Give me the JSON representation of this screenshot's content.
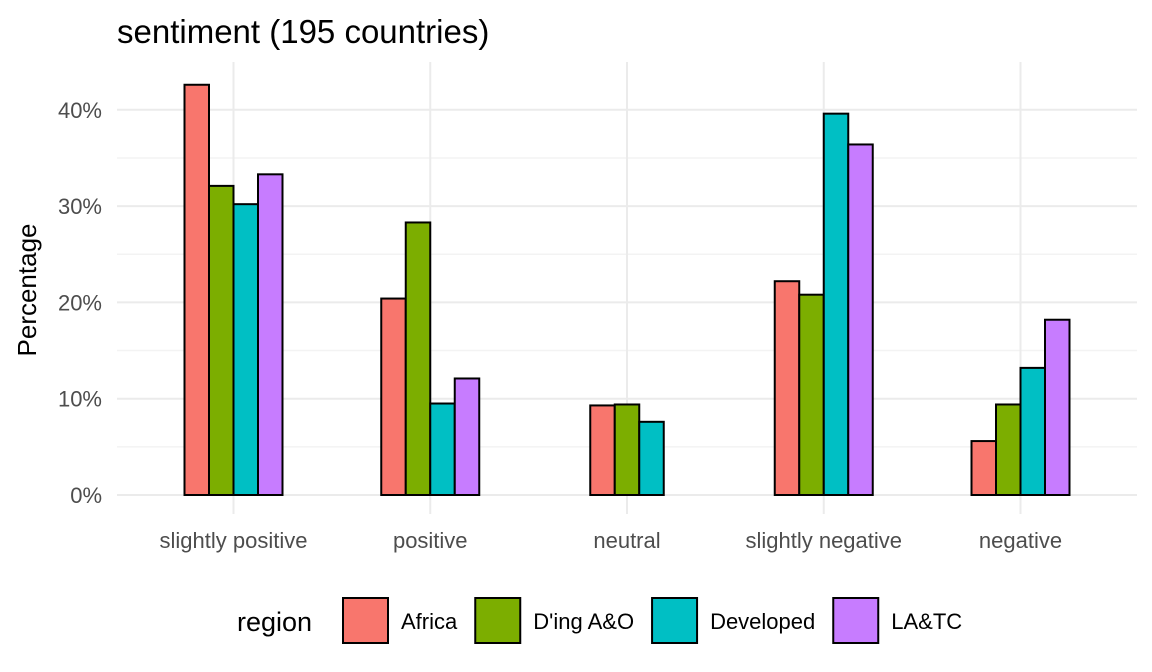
{
  "chart_data": {
    "type": "bar",
    "title": "sentiment (195 countries)",
    "xlabel": "",
    "ylabel": "Percentage",
    "categories": [
      "slightly positive",
      "positive",
      "neutral",
      "slightly negative",
      "negative"
    ],
    "series": [
      {
        "name": "Africa",
        "color": "#F8766D",
        "values": [
          42.6,
          20.4,
          9.3,
          22.2,
          5.6
        ]
      },
      {
        "name": "D'ing A&O",
        "color": "#7CAE00",
        "values": [
          32.1,
          28.3,
          9.4,
          20.8,
          9.4
        ]
      },
      {
        "name": "Developed",
        "color": "#00BFC4",
        "values": [
          30.2,
          9.5,
          7.6,
          39.6,
          13.2
        ]
      },
      {
        "name": "LA&TC",
        "color": "#C77CFF",
        "values": [
          33.3,
          12.1,
          null,
          36.4,
          18.2
        ]
      }
    ],
    "yticks": [
      0,
      10,
      20,
      30,
      40
    ],
    "ytick_labels": [
      "0%",
      "10%",
      "20%",
      "30%",
      "40%"
    ],
    "ylim": [
      0,
      44
    ],
    "grid": true,
    "legend": {
      "title": "region",
      "position": "bottom"
    }
  }
}
